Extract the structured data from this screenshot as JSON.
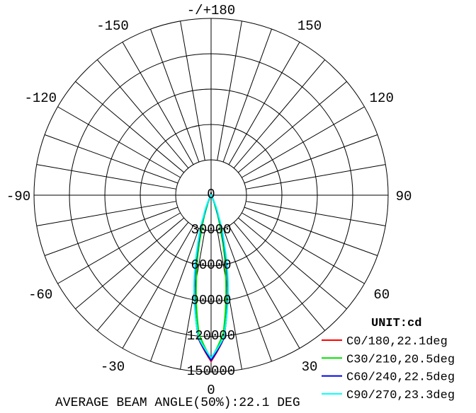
{
  "chart_data": {
    "type": "polar-line",
    "unit_label": "UNIT:cd",
    "angle_labels": [
      {
        "angle": 0,
        "label": "0"
      },
      {
        "angle": 30,
        "label": "30"
      },
      {
        "angle": 60,
        "label": "60"
      },
      {
        "angle": 90,
        "label": "90"
      },
      {
        "angle": 120,
        "label": "120"
      },
      {
        "angle": 150,
        "label": "150"
      },
      {
        "angle": 180,
        "label": "-/+180"
      },
      {
        "angle": -150,
        "label": "-150"
      },
      {
        "angle": -120,
        "label": "-120"
      },
      {
        "angle": -90,
        "label": "-90"
      },
      {
        "angle": -60,
        "label": "-60"
      },
      {
        "angle": -30,
        "label": "-30"
      }
    ],
    "radial_ticks": [
      0,
      30000,
      60000,
      90000,
      120000,
      150000
    ],
    "radial_tick_labels": [
      "0",
      "30000",
      "60000",
      "90000",
      "120000",
      "150000"
    ],
    "rmax": 150000,
    "angle_grid_step": 10,
    "grid": true,
    "legend_position": "bottom-right",
    "angles": [
      0,
      5,
      10,
      15,
      20,
      25,
      30,
      40,
      50,
      60,
      90
    ],
    "series": [
      {
        "name": "C0/180,22.1deg",
        "color": "#ff0000",
        "values": [
          141000,
          122400,
          80000,
          39300,
          14600,
          4100,
          900,
          200,
          100,
          0,
          0
        ]
      },
      {
        "name": "C30/210,20.5deg",
        "color": "#00e000",
        "values": [
          139000,
          117900,
          71900,
          31600,
          9900,
          2300,
          500,
          150,
          80,
          0,
          0
        ]
      },
      {
        "name": "C60/240,22.5deg",
        "color": "#0000e0",
        "values": [
          140000,
          122100,
          80900,
          40700,
          15700,
          4700,
          1000,
          200,
          100,
          0,
          0
        ]
      },
      {
        "name": "C90/270,23.3deg",
        "color": "#00ffff",
        "values": [
          138000,
          121400,
          82800,
          43800,
          17800,
          5700,
          1300,
          250,
          100,
          0,
          0
        ]
      }
    ]
  },
  "footer": "AVERAGE BEAM ANGLE(50%):22.1 DEG"
}
